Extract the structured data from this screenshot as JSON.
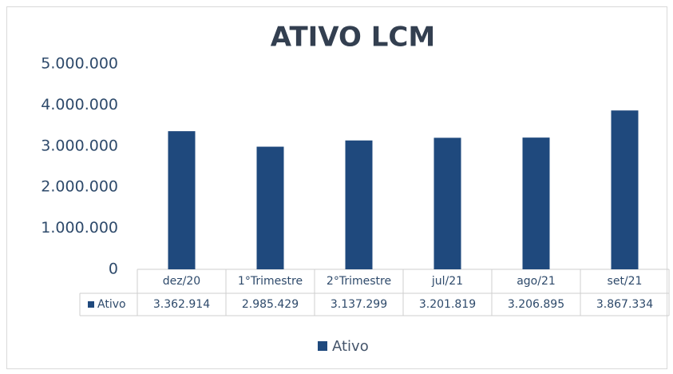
{
  "chart_data": {
    "type": "bar",
    "title": "ATIVO LCM",
    "categories": [
      "dez/20",
      "1°Trimestre",
      "2°Trimestre",
      "jul/21",
      "ago/21",
      "set/21"
    ],
    "series": [
      {
        "name": "Ativo",
        "color": "#1f497d",
        "values": [
          3362914,
          2985429,
          3137299,
          3201819,
          3206895,
          3867334
        ],
        "value_labels": [
          "3.362.914",
          "2.985.429",
          "3.137.299",
          "3.201.819",
          "3.206.895",
          "3.867.334"
        ]
      }
    ],
    "ylim": [
      0,
      5000000
    ],
    "yticks": [
      0,
      {
        "value": 1000000,
        "label": "1.000.000"
      },
      {
        "value": 2000000,
        "label": "2.000.000"
      },
      {
        "value": 3000000,
        "label": "3.000.000"
      },
      {
        "value": 4000000,
        "label": "4.000.000"
      },
      {
        "value": 5000000,
        "label": "5.000.000"
      }
    ],
    "grid": false,
    "legend": "bottom"
  }
}
